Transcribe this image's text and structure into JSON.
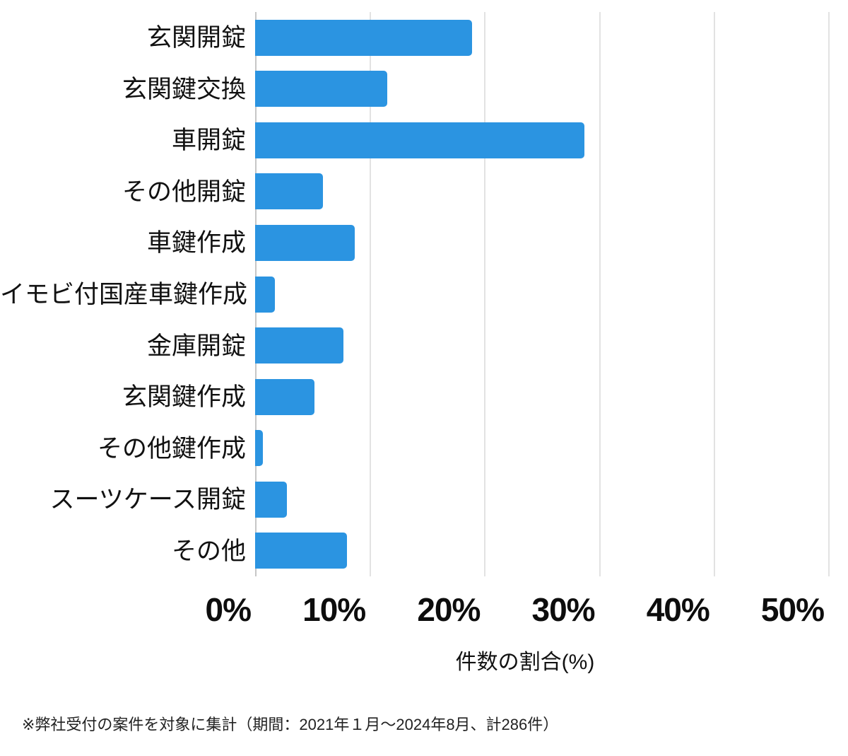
{
  "chart_data": {
    "type": "bar",
    "orientation": "horizontal",
    "title": "",
    "categories": [
      "玄関開錠",
      "玄関鍵交換",
      "車開錠",
      "その他開錠",
      "車鍵作成",
      "イモビ付国産車鍵作成",
      "金庫開錠",
      "玄関鍵作成",
      "その他鍵作成",
      "スーツケース開錠",
      "その他"
    ],
    "values": [
      18.9,
      11.5,
      28.7,
      5.9,
      8.7,
      1.7,
      7.7,
      5.2,
      0.7,
      2.8,
      8.0
    ],
    "unit": "%",
    "xlabel": "件数の割合(%)",
    "xlim": [
      0,
      50
    ],
    "xtick_values": [
      0,
      10,
      20,
      30,
      40,
      50
    ],
    "xtick_labels": [
      "0%",
      "10%",
      "20%",
      "30%",
      "40%",
      "50%"
    ],
    "grid": "vertical",
    "legend": "none",
    "bar_color": "#2b94e1",
    "gridline_color": "#e2e2e2",
    "axis_line_color": "#c6c6c6",
    "text_color": "#111111"
  },
  "footnote": {
    "text": "※弊社受付の案件を対象に集計（期間：2021年１月～2024年8月、計286件）"
  }
}
